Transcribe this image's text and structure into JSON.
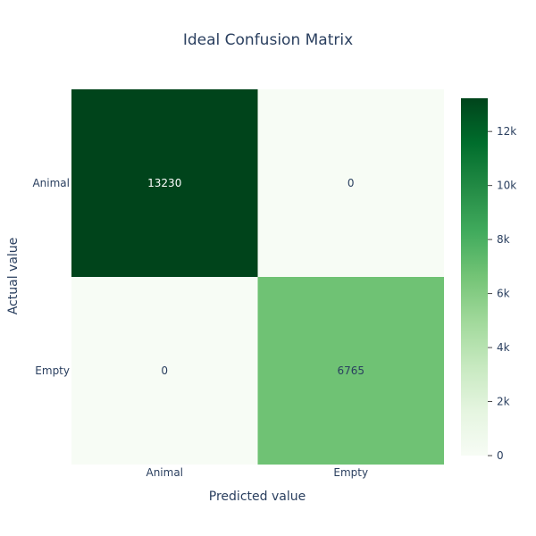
{
  "chart_data": {
    "type": "heatmap",
    "title": "Ideal Confusion Matrix",
    "xlabel": "Predicted value",
    "ylabel": "Actual value",
    "x_categories": [
      "Animal",
      "Empty"
    ],
    "y_categories": [
      "Animal",
      "Empty"
    ],
    "values": [
      [
        13230,
        0
      ],
      [
        0,
        6765
      ]
    ],
    "colorscale": "Greens",
    "zmin": 0,
    "zmax": 13230,
    "colorbar": {
      "ticks": [
        0,
        2000,
        4000,
        6000,
        8000,
        10000,
        12000
      ],
      "tick_labels": [
        "0",
        "2k",
        "4k",
        "6k",
        "8k",
        "10k",
        "12k"
      ]
    }
  }
}
